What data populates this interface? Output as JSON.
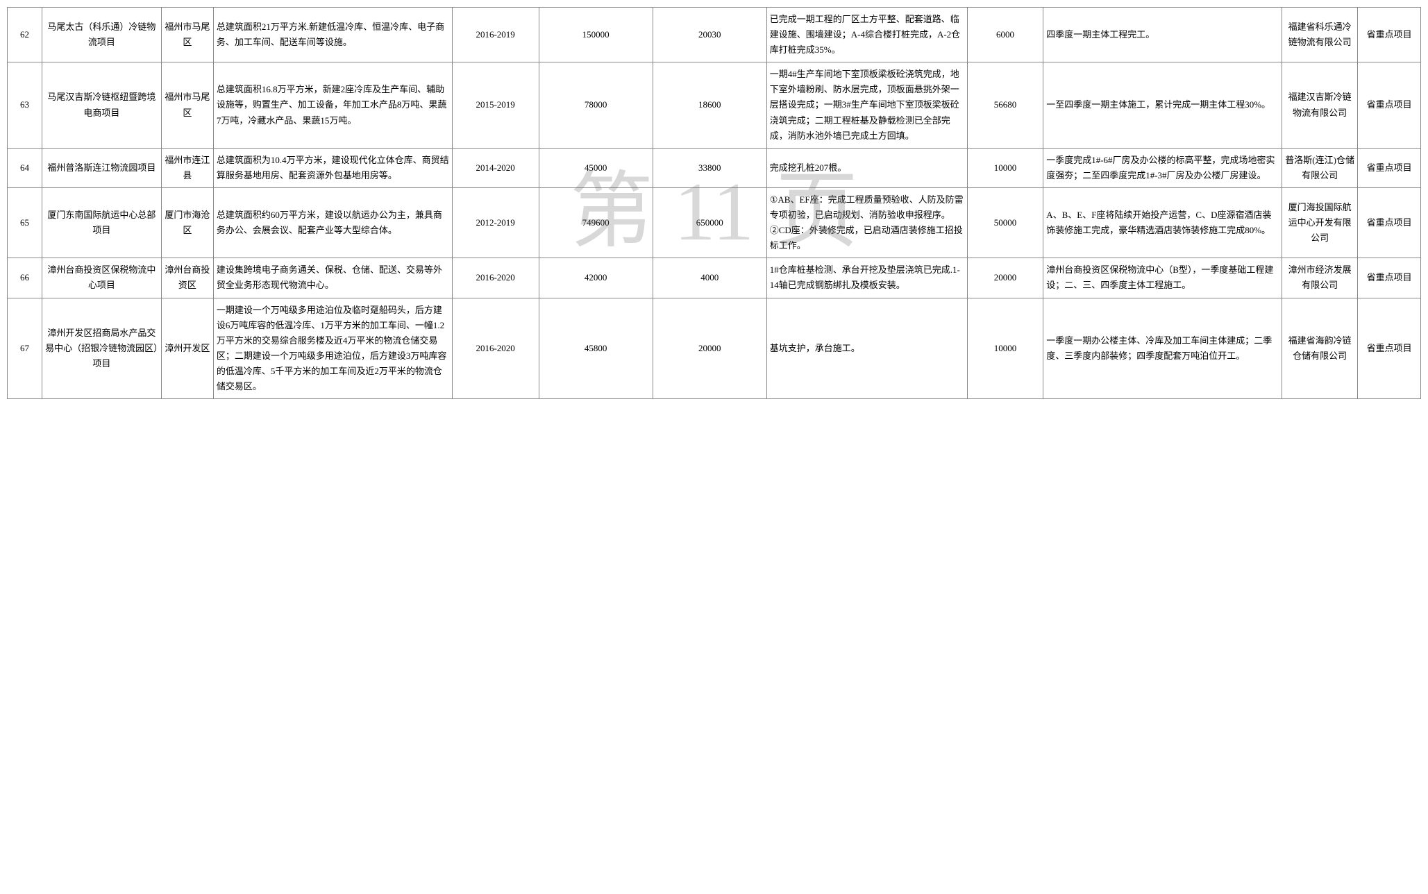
{
  "watermark": "第 11 页",
  "rows": [
    {
      "num": "62",
      "name": "马尾太古（科乐通）冷链物流项目",
      "loc": "福州市马尾区",
      "desc": "总建筑面积21万平方米.新建低温冷库、恒温冷库、电子商务、加工车间、配送车间等设施。",
      "period": "2016-2019",
      "n1": "150000",
      "n2": "20030",
      "status": "已完成一期工程的厂区土方平整、配套道路、临建设施、围墙建设；A-4综合楼打桩完成，A-2仓库打桩完成35%。",
      "n3": "6000",
      "plan": "四季度一期主体工程完工。",
      "org": "福建省科乐通冷链物流有限公司",
      "type": "省重点项目"
    },
    {
      "num": "63",
      "name": "马尾汉吉斯冷链枢纽暨跨境电商项目",
      "loc": "福州市马尾区",
      "desc": "总建筑面积16.8万平方米，新建2座冷库及生产车间、辅助设施等，购置生产、加工设备，年加工水产品8万吨、果蔬7万吨，冷藏水产品、果蔬15万吨。",
      "period": "2015-2019",
      "n1": "78000",
      "n2": "18600",
      "status": "一期4#生产车间地下室顶板梁板砼浇筑完成，地下室外墙粉刷、防水层完成，顶板面悬挑外架一层搭设完成；一期3#生产车间地下室顶板梁板砼浇筑完成；二期工程桩基及静载检测已全部完成，消防水池外墙已完成土方回填。",
      "n3": "56680",
      "plan": "一至四季度一期主体施工，累计完成一期主体工程30%。",
      "org": "福建汉吉斯冷链物流有限公司",
      "type": "省重点项目"
    },
    {
      "num": "64",
      "name": "福州普洛斯连江物流园项目",
      "loc": "福州市连江县",
      "desc": "总建筑面积为10.4万平方米，建设现代化立体仓库、商贸结算服务基地用房、配套资源外包基地用房等。",
      "period": "2014-2020",
      "n1": "45000",
      "n2": "33800",
      "status": "完成挖孔桩207根。",
      "n3": "10000",
      "plan": "一季度完成1#-6#厂房及办公楼的标高平整，完成场地密实度强夯；二至四季度完成1#-3#厂房及办公楼厂房建设。",
      "org": "普洛斯(连江)仓储有限公司",
      "type": "省重点项目"
    },
    {
      "num": "65",
      "name": "厦门东南国际航运中心总部项目",
      "loc": "厦门市海沧区",
      "desc": "总建筑面积约60万平方米，建设以航运办公为主，兼具商务办公、会展会议、配套产业等大型综合体。",
      "period": "2012-2019",
      "n1": "749600",
      "n2": "650000",
      "status": "①AB、EF座：完成工程质量预验收、人防及防雷专项初验，已启动规划、消防验收申报程序。②CD座：外装修完成，已启动酒店装修施工招投标工作。",
      "n3": "50000",
      "plan": "A、B、E、F座将陆续开始投产运营，C、D座源宿酒店装饰装修施工完成，豪华精选酒店装饰装修施工完成80%。",
      "org": "厦门海投国际航运中心开发有限公司",
      "type": "省重点项目"
    },
    {
      "num": "66",
      "name": "漳州台商投资区保税物流中心项目",
      "loc": "漳州台商投资区",
      "desc": "建设集跨境电子商务通关、保税、仓储、配送、交易等外贸全业务形态现代物流中心。",
      "period": "2016-2020",
      "n1": "42000",
      "n2": "4000",
      "status": "1#仓库桩基检测、承台开挖及垫层浇筑已完成.1-14轴已完成钢筋绑扎及模板安装。",
      "n3": "20000",
      "plan": "漳州台商投资区保税物流中心（B型），一季度基础工程建设；二、三、四季度主体工程施工。",
      "org": "漳州市经济发展有限公司",
      "type": "省重点项目"
    },
    {
      "num": "67",
      "name": "漳州开发区招商局水产品交易中心（招银冷链物流园区）项目",
      "loc": "漳州开发区",
      "desc": "一期建设一个万吨级多用途泊位及临时趸船码头，后方建设6万吨库容的低温冷库、1万平方米的加工车间、一幢1.2万平方米的交易综合服务楼及近4万平米的物流仓储交易区；二期建设一个万吨级多用途泊位，后方建设3万吨库容的低温冷库、5千平方米的加工车间及近2万平米的物流仓储交易区。",
      "period": "2016-2020",
      "n1": "45800",
      "n2": "20000",
      "status": "基坑支护，承台施工。",
      "n3": "10000",
      "plan": "一季度一期办公楼主体、冷库及加工车间主体建成；二季度、三季度内部装修；四季度配套万吨泊位开工。",
      "org": "福建省海韵冷链仓储有限公司",
      "type": "省重点项目"
    }
  ]
}
